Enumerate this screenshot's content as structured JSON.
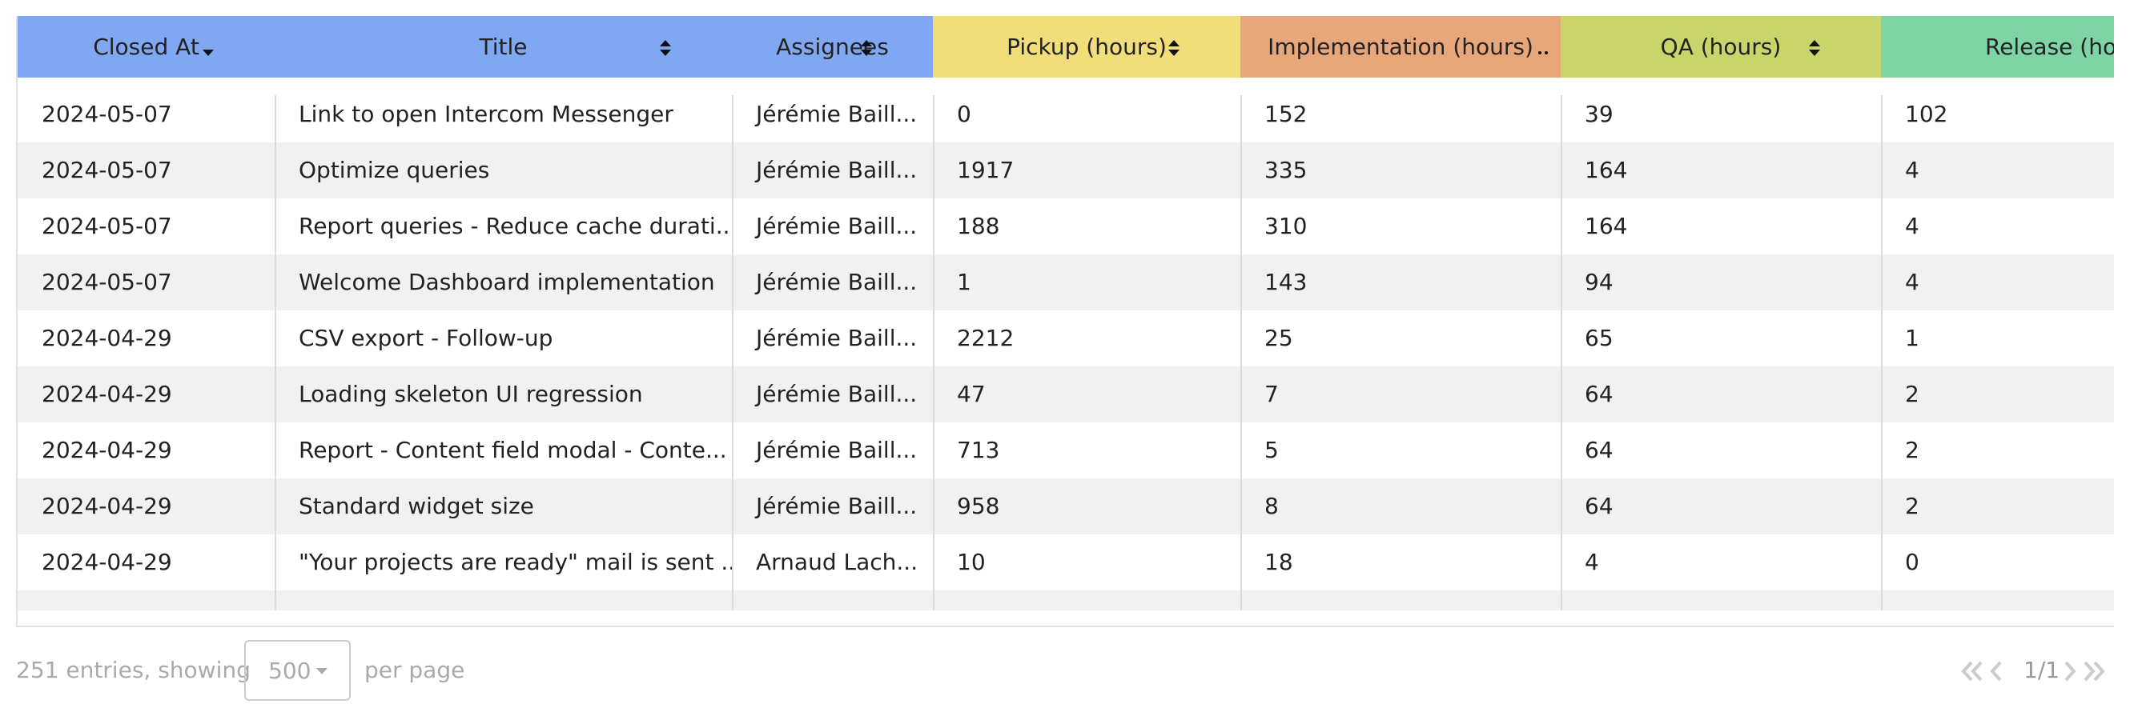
{
  "table": {
    "columns": [
      "Closed At",
      "Title",
      "Assignees",
      "Pickup (hours)",
      "Implementation (hours)",
      "QA (hours)",
      "Release (hours)"
    ],
    "rows": [
      [
        "2024-05-07",
        "Link to open Intercom Messenger",
        "Jérémie Baill...",
        "0",
        "152",
        "39",
        "102"
      ],
      [
        "2024-05-07",
        "Optimize queries",
        "Jérémie Baill...",
        "1917",
        "335",
        "164",
        "4"
      ],
      [
        "2024-05-07",
        "Report queries - Reduce cache durati...",
        "Jérémie Baill...",
        "188",
        "310",
        "164",
        "4"
      ],
      [
        "2024-05-07",
        "Welcome Dashboard implementation",
        "Jérémie Baill...",
        "1",
        "143",
        "94",
        "4"
      ],
      [
        "2024-04-29",
        "CSV export - Follow-up",
        "Jérémie Baill...",
        "2212",
        "25",
        "65",
        "1"
      ],
      [
        "2024-04-29",
        "Loading skeleton UI regression",
        "Jérémie Baill...",
        "47",
        "7",
        "64",
        "2"
      ],
      [
        "2024-04-29",
        "Report - Content field modal - Conte...",
        "Jérémie Baill...",
        "713",
        "5",
        "64",
        "2"
      ],
      [
        "2024-04-29",
        "Standard widget size",
        "Jérémie Baill...",
        "958",
        "8",
        "64",
        "2"
      ],
      [
        "2024-04-29",
        "\"Your projects are ready\" mail is sent ...",
        "Arnaud Lach...",
        "10",
        "18",
        "4",
        "0"
      ]
    ]
  },
  "footer": {
    "entries": "251 entries, showing",
    "page_size": "500",
    "per_page": "per page",
    "pagination": "1/1"
  }
}
